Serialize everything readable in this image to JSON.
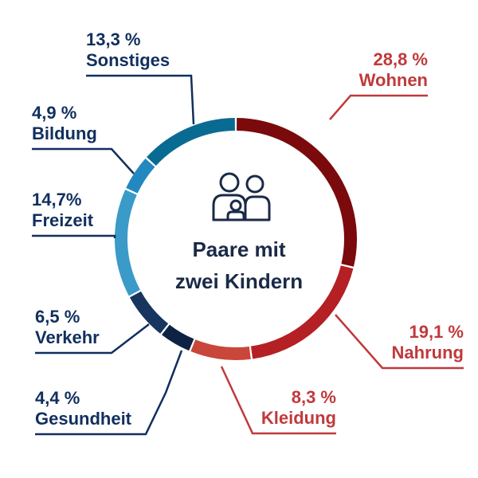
{
  "center": {
    "line1": "Paare mit",
    "line2": "zwei Kindern",
    "icon": "family-icon"
  },
  "chart_data": {
    "type": "pie",
    "donut": true,
    "categories": [
      "Wohnen",
      "Nahrung",
      "Kleidung",
      "Gesundheit",
      "Verkehr",
      "Freizeit",
      "Bildung",
      "Sonstiges"
    ],
    "values": [
      28.8,
      19.1,
      8.3,
      4.4,
      6.5,
      14.7,
      4.9,
      13.3
    ],
    "value_labels": [
      "28,8 %",
      "19,1 %",
      "8,3 %",
      "4,4 %",
      "6,5 %",
      "14,7%",
      "4,9 %",
      "13,3 %"
    ],
    "colors": [
      "#7a0a0c",
      "#b42024",
      "#c9463a",
      "#0e2244",
      "#17355f",
      "#3a9ac8",
      "#2488c0",
      "#0a6b92"
    ],
    "label_colors": [
      "#c0393c",
      "#c0393c",
      "#c0393c",
      "#112f5e",
      "#112f5e",
      "#112f5e",
      "#112f5e",
      "#112f5e"
    ]
  }
}
